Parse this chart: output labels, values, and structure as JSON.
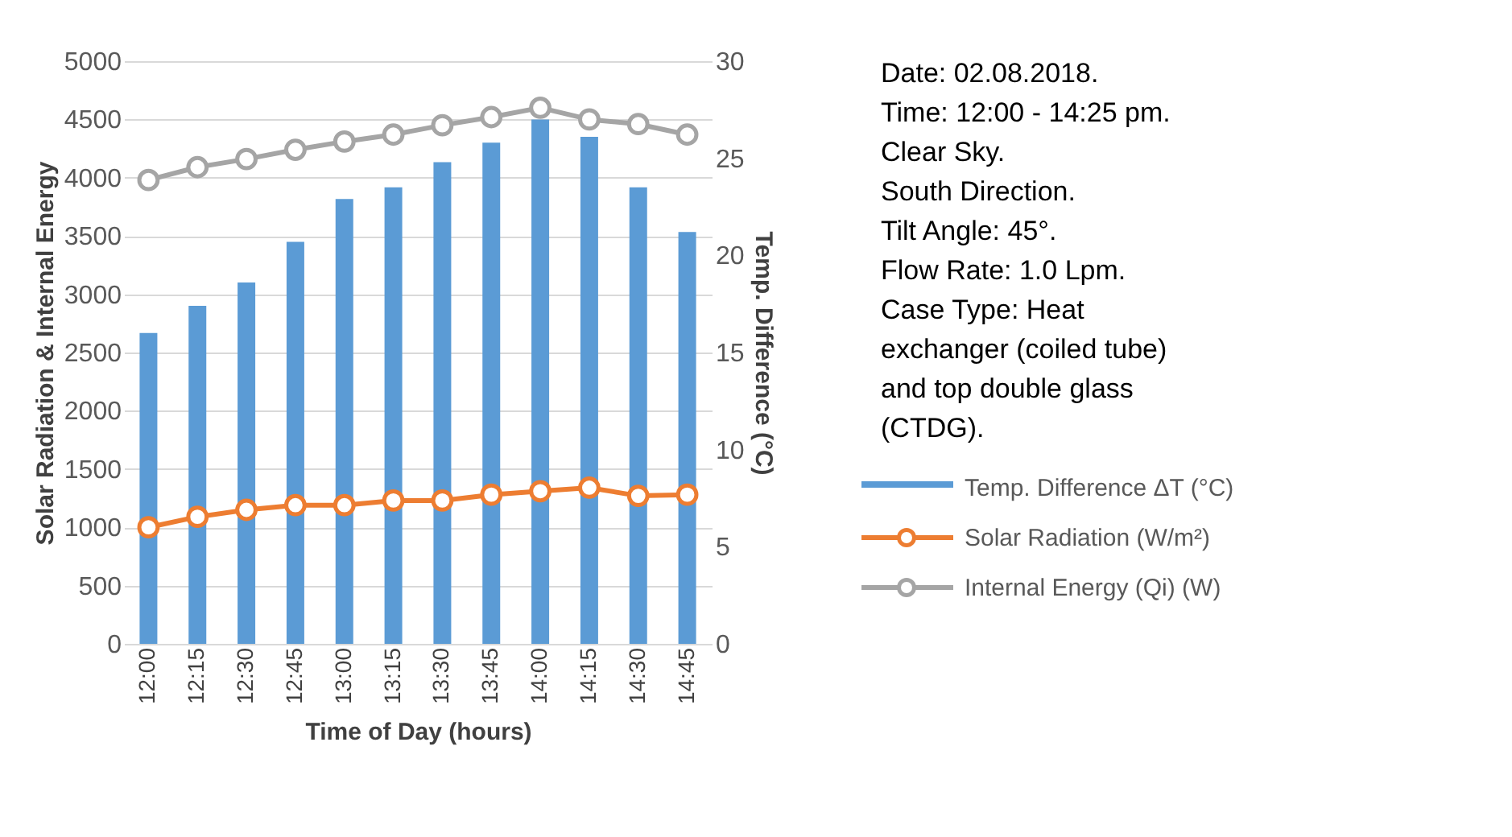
{
  "chart_data": {
    "type": "bar",
    "xlabel": "Time of Day (hours)",
    "ylabel": "Solar Radiation & Internal Energy",
    "y2label": "Temp. Difference (°C)",
    "categories": [
      "12:00",
      "12:15",
      "12:30",
      "12:45",
      "13:00",
      "13:15",
      "13:30",
      "13:45",
      "14:00",
      "14:15",
      "14:30",
      "14:45"
    ],
    "series": [
      {
        "name": "Temp. Difference ΔT (°C)",
        "axis": "y2",
        "color": "#5b9bd5",
        "values": [
          16.0,
          17.4,
          18.6,
          20.7,
          22.9,
          23.5,
          24.8,
          25.8,
          27.0,
          26.1,
          23.5,
          21.2
        ]
      },
      {
        "name": "Solar Radiation (W/m²)",
        "type": "line",
        "color": "#ed7d31",
        "values": [
          1000,
          1090,
          1150,
          1190,
          1190,
          1230,
          1230,
          1280,
          1310,
          1340,
          1270,
          1280
        ]
      },
      {
        "name": "Internal Energy (Qi) (W)",
        "type": "line",
        "color": "#a5a5a5",
        "values": [
          3980,
          4090,
          4160,
          4240,
          4310,
          4370,
          4450,
          4520,
          4600,
          4500,
          4460,
          4370
        ]
      }
    ],
    "ylim": [
      0,
      5000
    ],
    "yticks": [
      0,
      500,
      1000,
      1500,
      2000,
      2500,
      3000,
      3500,
      4000,
      4500,
      5000
    ],
    "y2lim": [
      0,
      30
    ],
    "y2ticks": [
      0,
      5,
      10,
      15,
      20,
      25,
      30
    ],
    "grid": "y",
    "marker": "circle",
    "line_style": "solid",
    "legend": "right",
    "annotations": [
      "Date: 02.08.2018.",
      "Time: 12:00 - 14:25 pm.",
      "Clear Sky.",
      "South Direction.",
      "Tilt Angle: 45°.",
      "Flow Rate: 1.0 Lpm.",
      "Case Type: Heat exchanger (coiled tube) and top double glass (CTDG)."
    ]
  }
}
